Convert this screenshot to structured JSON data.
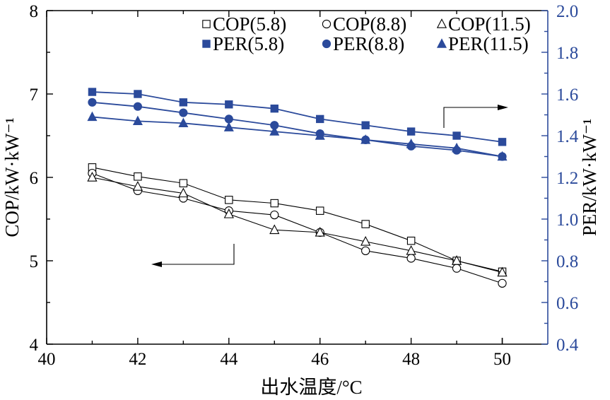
{
  "chart_data": {
    "type": "line",
    "title": "",
    "xlabel": "出水温度/°C",
    "ylabel_left": "COP/kW·kW⁻¹",
    "ylabel_right": "PER/kW·kW⁻¹",
    "xlim": [
      40,
      51
    ],
    "ylim_left": [
      4,
      8
    ],
    "ylim_right": [
      0.4,
      2.0
    ],
    "x_ticks": [
      "40",
      "42",
      "44",
      "46",
      "48",
      "50"
    ],
    "y_left_ticks": [
      "4",
      "5",
      "6",
      "7",
      "8"
    ],
    "y_right_ticks": [
      "0.4",
      "0.6",
      "0.8",
      "1.0",
      "1.2",
      "1.4",
      "1.6",
      "1.8",
      "2.0"
    ],
    "x": [
      41,
      42,
      43,
      44,
      45,
      46,
      47,
      48,
      49,
      50
    ],
    "grid": false,
    "legend_position": "top-right",
    "series": [
      {
        "name": "COP(5.8)",
        "axis": "left",
        "marker": "open-square",
        "values": [
          6.12,
          6.01,
          5.93,
          5.73,
          5.69,
          5.6,
          5.44,
          5.24,
          5.0,
          4.87
        ]
      },
      {
        "name": "COP(8.8)",
        "axis": "left",
        "marker": "open-circle",
        "values": [
          6.05,
          5.84,
          5.75,
          5.6,
          5.55,
          5.34,
          5.12,
          5.03,
          4.91,
          4.73
        ]
      },
      {
        "name": "COP(11.5)",
        "axis": "left",
        "marker": "open-triangle",
        "values": [
          6.0,
          5.89,
          5.81,
          5.56,
          5.37,
          5.34,
          5.23,
          5.12,
          5.0,
          4.86
        ]
      },
      {
        "name": "PER(5.8)",
        "axis": "right",
        "marker": "filled-square",
        "values": [
          1.61,
          1.6,
          1.56,
          1.55,
          1.53,
          1.48,
          1.45,
          1.42,
          1.4,
          1.37
        ]
      },
      {
        "name": "PER(8.8)",
        "axis": "right",
        "marker": "filled-circle",
        "values": [
          1.56,
          1.54,
          1.51,
          1.48,
          1.45,
          1.41,
          1.38,
          1.35,
          1.33,
          1.3
        ]
      },
      {
        "name": "PER(11.5)",
        "axis": "right",
        "marker": "filled-triangle",
        "values": [
          1.49,
          1.47,
          1.46,
          1.44,
          1.42,
          1.4,
          1.38,
          1.36,
          1.34,
          1.3
        ]
      }
    ],
    "colors": {
      "left": "#000000",
      "right": "#2b4a9b"
    }
  }
}
